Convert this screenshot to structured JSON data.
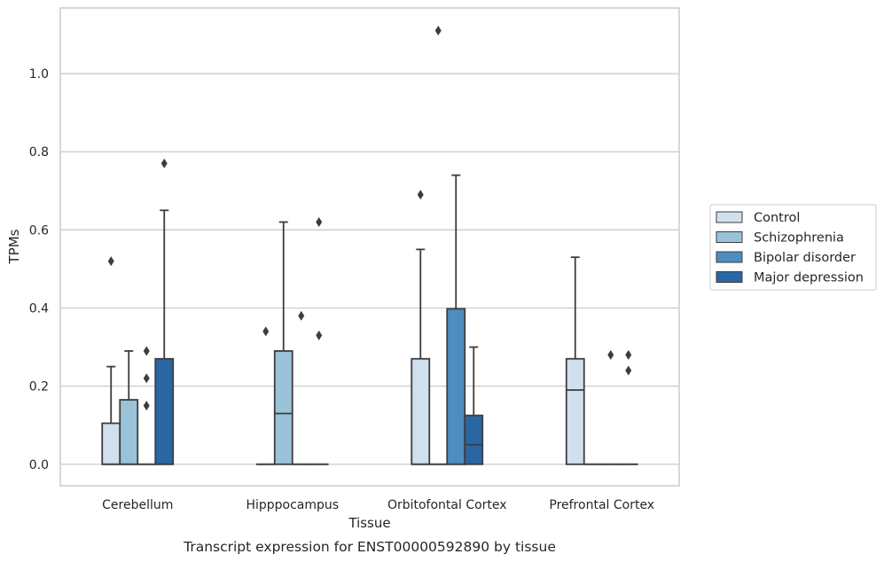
{
  "caption": "Transcript expression for ENST00000592890 by tissue",
  "chart_data": {
    "type": "box",
    "xlabel": "Tissue",
    "ylabel": "TPMs",
    "ylim": [
      -0.055,
      1.168
    ],
    "yticks": [
      0.0,
      0.2,
      0.4,
      0.6,
      0.8,
      1.0
    ],
    "ytick_labels": [
      "0.0",
      "0.2",
      "0.4",
      "0.6",
      "0.8",
      "1.0"
    ],
    "grid": "horizontal",
    "legend_position": "right",
    "categories": [
      "Cerebellum",
      "Hipppocampus",
      "Orbitofontal Cortex",
      "Prefrontal Cortex"
    ],
    "series": [
      {
        "name": "Control",
        "color": "#d1e0ef",
        "boxes": [
          {
            "q1": 0.0,
            "median": 0.0,
            "q3": 0.105,
            "whisker_low": 0.0,
            "whisker_high": 0.25,
            "outliers": [
              0.52
            ]
          },
          {
            "q1": 0.0,
            "median": 0.0,
            "q3": 0.0,
            "whisker_low": 0.0,
            "whisker_high": 0.0,
            "outliers": [
              0.34
            ]
          },
          {
            "q1": 0.0,
            "median": 0.0,
            "q3": 0.27,
            "whisker_low": 0.0,
            "whisker_high": 0.55,
            "outliers": [
              0.69
            ]
          },
          {
            "q1": 0.0,
            "median": 0.19,
            "q3": 0.27,
            "whisker_low": 0.0,
            "whisker_high": 0.53,
            "outliers": []
          }
        ]
      },
      {
        "name": "Schizophrenia",
        "color": "#9ac3da",
        "boxes": [
          {
            "q1": 0.0,
            "median": 0.0,
            "q3": 0.165,
            "whisker_low": 0.0,
            "whisker_high": 0.29,
            "outliers": []
          },
          {
            "q1": 0.0,
            "median": 0.13,
            "q3": 0.29,
            "whisker_low": 0.0,
            "whisker_high": 0.62,
            "outliers": []
          },
          {
            "q1": 0.0,
            "median": 0.0,
            "q3": 0.0,
            "whisker_low": 0.0,
            "whisker_high": 0.0,
            "outliers": [
              1.11
            ]
          },
          {
            "q1": 0.0,
            "median": 0.0,
            "q3": 0.0,
            "whisker_low": 0.0,
            "whisker_high": 0.0,
            "outliers": []
          }
        ]
      },
      {
        "name": "Bipolar disorder",
        "color": "#4d8dbf",
        "boxes": [
          {
            "q1": 0.0,
            "median": 0.0,
            "q3": 0.0,
            "whisker_low": 0.0,
            "whisker_high": 0.0,
            "outliers": [
              0.15,
              0.22,
              0.29
            ]
          },
          {
            "q1": 0.0,
            "median": 0.0,
            "q3": 0.0,
            "whisker_low": 0.0,
            "whisker_high": 0.0,
            "outliers": [
              0.38
            ]
          },
          {
            "q1": 0.0,
            "median": 0.0,
            "q3": 0.398,
            "whisker_low": 0.0,
            "whisker_high": 0.74,
            "outliers": []
          },
          {
            "q1": 0.0,
            "median": 0.0,
            "q3": 0.0,
            "whisker_low": 0.0,
            "whisker_high": 0.0,
            "outliers": [
              0.28
            ]
          }
        ]
      },
      {
        "name": "Major depression",
        "color": "#2a66a3",
        "boxes": [
          {
            "q1": 0.0,
            "median": 0.0,
            "q3": 0.27,
            "whisker_low": 0.0,
            "whisker_high": 0.65,
            "outliers": [
              0.77
            ]
          },
          {
            "q1": 0.0,
            "median": 0.0,
            "q3": 0.0,
            "whisker_low": 0.0,
            "whisker_high": 0.0,
            "outliers": [
              0.33,
              0.62
            ]
          },
          {
            "q1": 0.0,
            "median": 0.05,
            "q3": 0.125,
            "whisker_low": 0.0,
            "whisker_high": 0.3,
            "outliers": []
          },
          {
            "q1": 0.0,
            "median": 0.0,
            "q3": 0.0,
            "whisker_low": 0.0,
            "whisker_high": 0.0,
            "outliers": [
              0.24,
              0.28
            ]
          }
        ]
      }
    ]
  }
}
